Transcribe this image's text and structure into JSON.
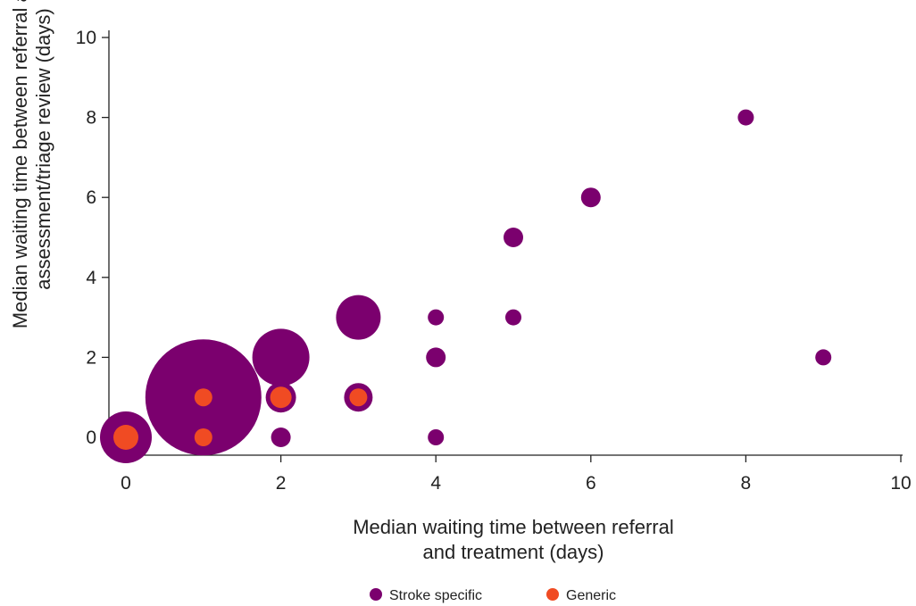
{
  "chart_data": {
    "type": "scatter",
    "title": "",
    "xlabel": [
      "Median waiting time between referral",
      "and treatment (days)"
    ],
    "ylabel": [
      "Median waiting time between referral and",
      "assessment/triage review (days)"
    ],
    "xlim": [
      0,
      10
    ],
    "ylim": [
      0,
      10
    ],
    "xticks": [
      "0",
      "2",
      "4",
      "6",
      "8",
      "10"
    ],
    "yticks": [
      "0",
      "2",
      "4",
      "6",
      "8",
      "10"
    ],
    "grid": false,
    "legend_position": "bottom-center",
    "series": [
      {
        "name": "Stroke specific",
        "color": "#7b006e",
        "points": [
          {
            "x": 0,
            "y": 0,
            "size": 29
          },
          {
            "x": 1,
            "y": 1,
            "size": 65
          },
          {
            "x": 1,
            "y": 0,
            "size": 10
          },
          {
            "x": 2,
            "y": 2,
            "size": 32
          },
          {
            "x": 2,
            "y": 1,
            "size": 17
          },
          {
            "x": 2,
            "y": 0,
            "size": 11
          },
          {
            "x": 3,
            "y": 3,
            "size": 25
          },
          {
            "x": 3,
            "y": 1,
            "size": 16
          },
          {
            "x": 4,
            "y": 3,
            "size": 9
          },
          {
            "x": 4,
            "y": 2,
            "size": 11
          },
          {
            "x": 4,
            "y": 0,
            "size": 9
          },
          {
            "x": 5,
            "y": 5,
            "size": 11
          },
          {
            "x": 5,
            "y": 3,
            "size": 9
          },
          {
            "x": 6,
            "y": 6,
            "size": 11
          },
          {
            "x": 8,
            "y": 8,
            "size": 9
          },
          {
            "x": 9,
            "y": 2,
            "size": 9
          }
        ]
      },
      {
        "name": "Generic",
        "color": "#f04b23",
        "points": [
          {
            "x": 0,
            "y": 0,
            "size": 14
          },
          {
            "x": 1,
            "y": 1,
            "size": 10
          },
          {
            "x": 1,
            "y": 0,
            "size": 10
          },
          {
            "x": 2,
            "y": 1,
            "size": 12
          },
          {
            "x": 3,
            "y": 1,
            "size": 10
          }
        ]
      }
    ]
  }
}
